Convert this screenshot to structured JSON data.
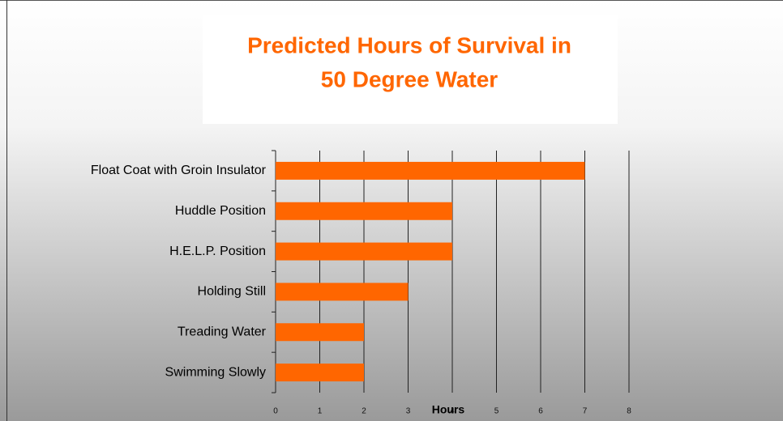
{
  "chart_data": {
    "type": "bar",
    "orientation": "horizontal",
    "title": [
      "Predicted Hours of Survival in",
      "50 Degree Water"
    ],
    "x_label": "Hours",
    "categories": [
      "Float Coat with Groin Insulator",
      "Huddle Position",
      "H.E.L.P. Position",
      "Holding Still",
      "Treading Water",
      "Swimming Slowly"
    ],
    "values": [
      7,
      4,
      4,
      3,
      2,
      2
    ],
    "color": "#ff6600",
    "title_color": "#ff6600",
    "xlim": [
      0,
      8
    ],
    "xticks": [
      0,
      1,
      2,
      3,
      4,
      5,
      6,
      7,
      8
    ],
    "grid": true
  }
}
